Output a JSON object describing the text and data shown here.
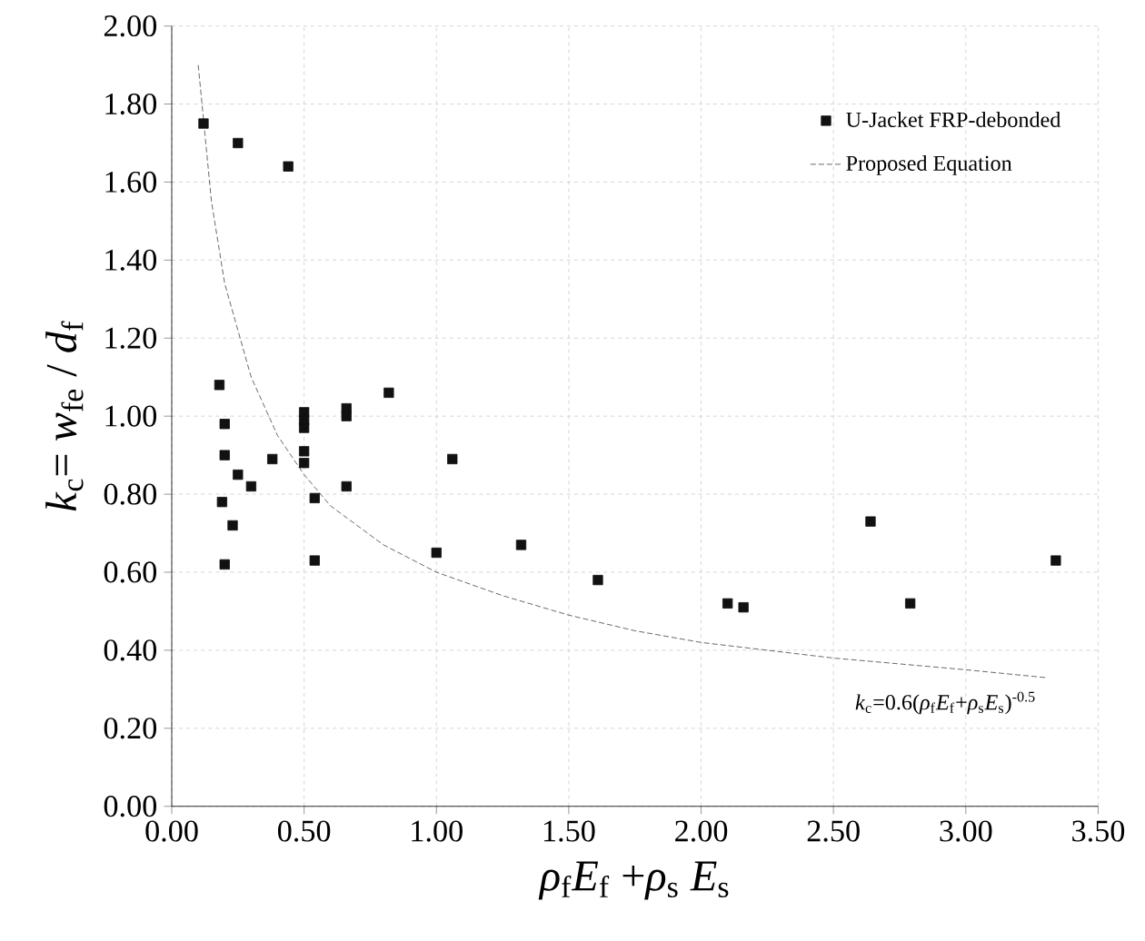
{
  "chart_data": {
    "type": "scatter",
    "xlabel": "*ρ*$_{f}$*E*$_{f}$ +*ρ*$_{s}$ *E*$_{s}$",
    "ylabel": "*k*$_{c}$= *w*$_{fe}$ / *d*$_{f}$",
    "xlim": [
      0,
      3.5
    ],
    "xticks": [
      {
        "value": 0,
        "label": "0.00"
      },
      {
        "value": 0.5,
        "label": "0.50"
      },
      {
        "value": 1,
        "label": "1.00"
      },
      {
        "value": 1.5,
        "label": "1.50"
      },
      {
        "value": 2,
        "label": "2.00"
      },
      {
        "value": 2.5,
        "label": "2.50"
      },
      {
        "value": 3,
        "label": "3.00"
      },
      {
        "value": 3.5,
        "label": "3.50"
      }
    ],
    "ylim": [
      0,
      2
    ],
    "yticks": [
      {
        "value": 0,
        "label": "0.00"
      },
      {
        "value": 0.2,
        "label": "0.20"
      },
      {
        "value": 0.4,
        "label": "0.40"
      },
      {
        "value": 0.6,
        "label": "0.60"
      },
      {
        "value": 0.8,
        "label": "0.80"
      },
      {
        "value": 1,
        "label": "1.00"
      },
      {
        "value": 1.2,
        "label": "1.20"
      },
      {
        "value": 1.4,
        "label": "1.40"
      },
      {
        "value": 1.6,
        "label": "1.60"
      },
      {
        "value": 1.8,
        "label": "1.80"
      },
      {
        "value": 2,
        "label": "2.00"
      }
    ],
    "grid": true,
    "legend": "top right",
    "series": [
      {
        "name": "U-Jacket FRP-debonded",
        "marker": "square",
        "color": "#111111",
        "x": [
          0.12,
          0.25,
          0.44,
          0.18,
          0.2,
          0.2,
          0.19,
          0.2,
          0.23,
          0.25,
          0.3,
          0.38,
          0.5,
          0.5,
          0.5,
          0.5,
          0.5,
          0.54,
          0.54,
          0.66,
          0.66,
          0.66,
          0.82,
          1.06,
          1.0,
          1.32,
          1.61,
          2.1,
          2.16,
          2.64,
          2.79,
          3.34
        ],
        "values": [
          1.75,
          1.7,
          1.64,
          1.08,
          0.98,
          0.9,
          0.78,
          0.62,
          0.72,
          0.85,
          0.82,
          0.89,
          1.01,
          0.99,
          0.97,
          0.91,
          0.88,
          0.79,
          0.63,
          1.02,
          1.0,
          0.82,
          1.06,
          0.89,
          0.65,
          0.67,
          0.58,
          0.52,
          0.51,
          0.73,
          0.52,
          0.63
        ]
      },
      {
        "name": "Proposed Equation",
        "type": "line",
        "marker": "none",
        "line_style": "dashed",
        "color": "#444444",
        "x": [
          0.1,
          0.15,
          0.2,
          0.3,
          0.4,
          0.5,
          0.6,
          0.8,
          1.0,
          1.25,
          1.5,
          1.75,
          2.0,
          2.5,
          3.0,
          3.3
        ],
        "values": [
          1.9,
          1.55,
          1.34,
          1.1,
          0.95,
          0.85,
          0.77,
          0.67,
          0.6,
          0.54,
          0.49,
          0.45,
          0.42,
          0.38,
          0.35,
          0.33
        ]
      }
    ],
    "annotations": [
      "*k*$_{c}$=0.6(*ρ*$_{f}$*E*$_{f}$+*ρ*$_{s}$*E*$_{s}$)$^{-0.5}$"
    ]
  }
}
